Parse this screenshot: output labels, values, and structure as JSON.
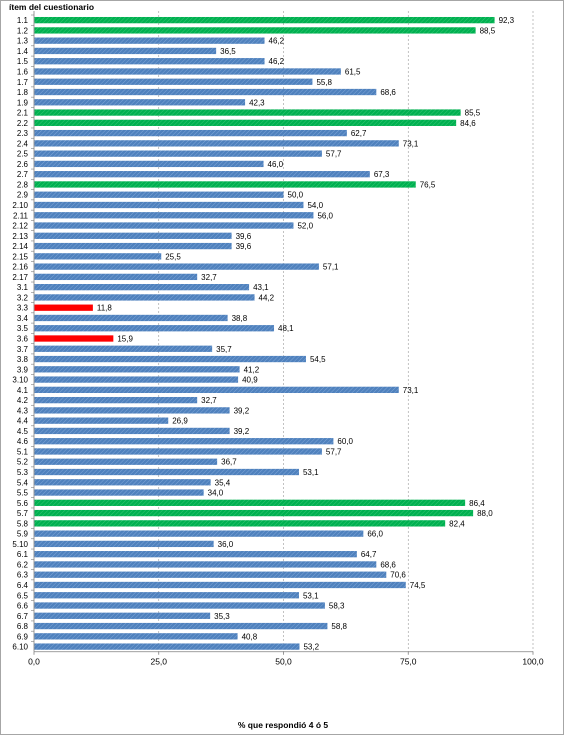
{
  "chart_data": {
    "type": "bar",
    "orientation": "horizontal",
    "ylabel": "ítem del cuestionario",
    "xlabel": "% que respondió 4 ó 5",
    "xlim": [
      0,
      100
    ],
    "x_ticks": [
      "0,0",
      "25,0",
      "50,0",
      "75,0",
      "100,0"
    ],
    "grid": "vertical dashed",
    "categories": [
      "1.1",
      "1.2",
      "1.3",
      "1.4",
      "1.5",
      "1.6",
      "1.7",
      "1.8",
      "1.9",
      "2.1",
      "2.2",
      "2.3",
      "2.4",
      "2.5",
      "2.6",
      "2.7",
      "2.8",
      "2.9",
      "2.10",
      "2.11",
      "2.12",
      "2.13",
      "2.14",
      "2.15",
      "2.16",
      "2.17",
      "3.1",
      "3.2",
      "3.3",
      "3.4",
      "3.5",
      "3.6",
      "3.7",
      "3.8",
      "3.9",
      "3.10",
      "4.1",
      "4.2",
      "4.3",
      "4.4",
      "4.5",
      "4.6",
      "5.1",
      "5.2",
      "5.3",
      "5.4",
      "5.5",
      "5.6",
      "5.7",
      "5.8",
      "5.9",
      "5.10",
      "6.1",
      "6.2",
      "6.3",
      "6.4",
      "6.5",
      "6.6",
      "6.7",
      "6.8",
      "6.9",
      "6.10"
    ],
    "values": [
      92.3,
      88.5,
      46.2,
      36.5,
      46.2,
      61.5,
      55.8,
      68.6,
      42.3,
      85.5,
      84.6,
      62.7,
      73.1,
      57.7,
      46.0,
      67.3,
      76.5,
      50.0,
      54.0,
      56.0,
      52.0,
      39.6,
      39.6,
      25.5,
      57.1,
      32.7,
      43.1,
      44.2,
      11.8,
      38.8,
      48.1,
      15.9,
      35.7,
      54.5,
      41.2,
      40.9,
      73.1,
      32.7,
      39.2,
      26.9,
      39.2,
      60.0,
      57.7,
      36.7,
      53.1,
      35.4,
      34.0,
      86.4,
      88.0,
      82.4,
      66.0,
      36.0,
      64.7,
      68.6,
      70.6,
      74.5,
      53.1,
      58.3,
      35.3,
      58.8,
      40.8,
      53.2
    ],
    "value_labels": [
      "92,3",
      "88,5",
      "46,2",
      "36,5",
      "46,2",
      "61,5",
      "55,8",
      "68,6",
      "42,3",
      "85,5",
      "84,6",
      "62,7",
      "73,1",
      "57,7",
      "46,0",
      "67,3",
      "76,5",
      "50,0",
      "54,0",
      "56,0",
      "52,0",
      "39,6",
      "39,6",
      "25,5",
      "57,1",
      "32,7",
      "43,1",
      "44,2",
      "11,8",
      "38,8",
      "48,1",
      "15,9",
      "35,7",
      "54,5",
      "41,2",
      "40,9",
      "73,1",
      "32,7",
      "39,2",
      "26,9",
      "39,2",
      "60,0",
      "57,7",
      "36,7",
      "53,1",
      "35,4",
      "34,0",
      "86,4",
      "88,0",
      "82,4",
      "66,0",
      "36,0",
      "64,7",
      "68,6",
      "70,6",
      "74,5",
      "53,1",
      "58,3",
      "35,3",
      "58,8",
      "40,8",
      "53,2"
    ],
    "bar_status": [
      "high",
      "high",
      "normal",
      "normal",
      "normal",
      "normal",
      "normal",
      "normal",
      "normal",
      "high",
      "high",
      "normal",
      "normal",
      "normal",
      "normal",
      "normal",
      "high",
      "normal",
      "normal",
      "normal",
      "normal",
      "normal",
      "normal",
      "normal",
      "normal",
      "normal",
      "normal",
      "normal",
      "low",
      "normal",
      "normal",
      "low",
      "normal",
      "normal",
      "normal",
      "normal",
      "normal",
      "normal",
      "normal",
      "normal",
      "normal",
      "normal",
      "normal",
      "normal",
      "normal",
      "normal",
      "normal",
      "high",
      "high",
      "high",
      "normal",
      "normal",
      "normal",
      "normal",
      "normal",
      "normal",
      "normal",
      "normal",
      "normal",
      "normal",
      "normal",
      "normal"
    ],
    "colors": {
      "high": "#00b050",
      "normal": "#4f81bd",
      "low": "#ff0000",
      "grid": "#999999",
      "axis": "#7f7f7f"
    }
  }
}
